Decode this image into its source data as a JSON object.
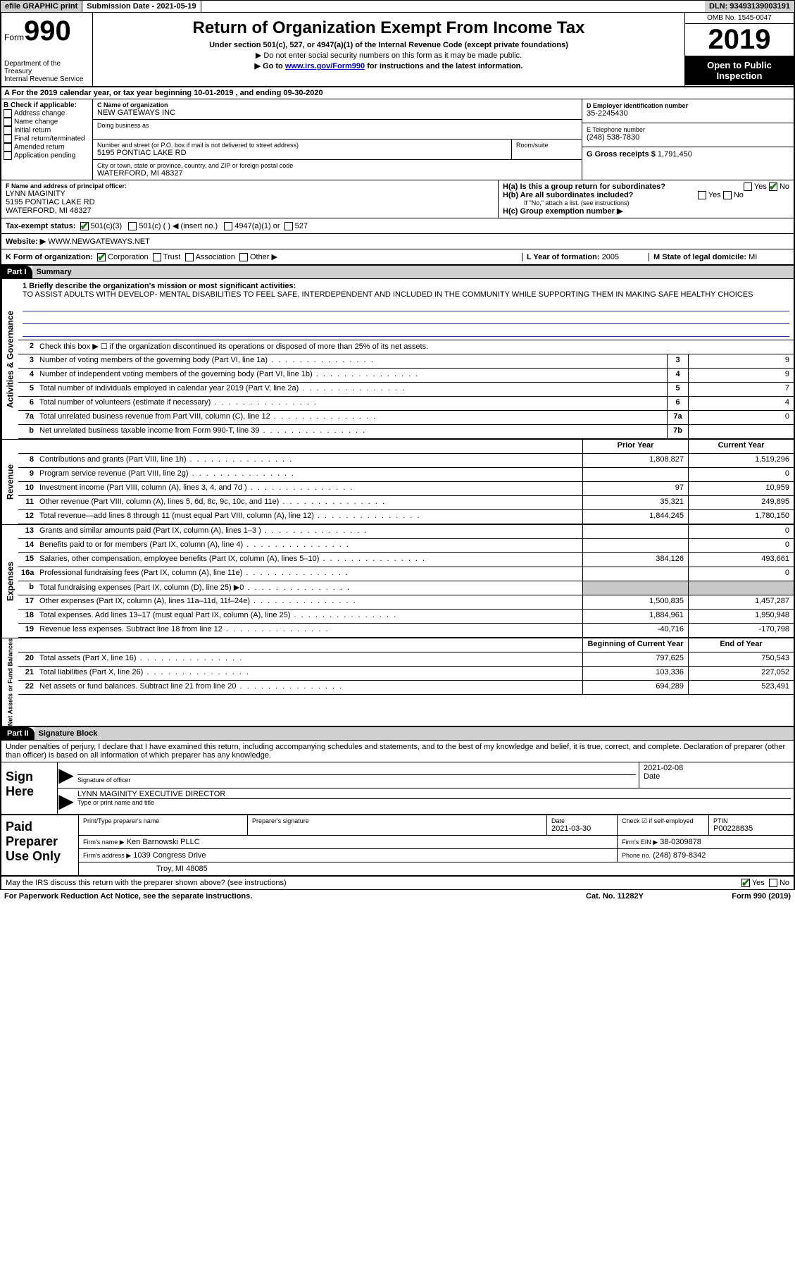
{
  "topbar": {
    "efile": "efile GRAPHIC print",
    "submission": "Submission Date - 2021-05-19",
    "dln": "DLN: 93493139003191"
  },
  "header": {
    "form_word": "Form",
    "form_num": "990",
    "dept": "Department of the Treasury\nInternal Revenue Service",
    "title": "Return of Organization Exempt From Income Tax",
    "sub1": "Under section 501(c), 527, or 4947(a)(1) of the Internal Revenue Code (except private foundations)",
    "sub2": "▶ Do not enter social security numbers on this form as it may be made public.",
    "sub3a": "▶ Go to ",
    "sub3_link": "www.irs.gov/Form990",
    "sub3b": " for instructions and the latest information.",
    "omb": "OMB No. 1545-0047",
    "year": "2019",
    "open": "Open to Public Inspection"
  },
  "period": "A   For the 2019 calendar year, or tax year beginning 10-01-2019   , and ending 09-30-2020",
  "B": {
    "label": "B Check if applicable:",
    "opts": [
      "Address change",
      "Name change",
      "Initial return",
      "Final return/terminated",
      "Amended return",
      "Application pending"
    ]
  },
  "C": {
    "name_lbl": "C Name of organization",
    "name": "NEW GATEWAYS INC",
    "dba_lbl": "Doing business as",
    "dba": "",
    "addr_lbl": "Number and street (or P.O. box if mail is not delivered to street address)",
    "addr": "5195 PONTIAC LAKE RD",
    "room_lbl": "Room/suite",
    "room": "",
    "city_lbl": "City or town, state or province, country, and ZIP or foreign postal code",
    "city": "WATERFORD, MI  48327"
  },
  "D": {
    "lbl": "D Employer identification number",
    "val": "35-2245430"
  },
  "E": {
    "lbl": "E Telephone number",
    "val": "(248) 538-7830"
  },
  "G": {
    "lbl": "G Gross receipts $",
    "val": "1,791,450"
  },
  "F": {
    "lbl": "F  Name and address of principal officer:",
    "name": "LYNN MAGINITY",
    "addr1": "5195 PONTIAC LAKE RD",
    "addr2": "WATERFORD, MI  48327"
  },
  "H": {
    "a": "H(a)  Is this a group return for subordinates?",
    "b": "H(b)  Are all subordinates included?",
    "bnote": "If \"No,\" attach a list. (see instructions)",
    "c": "H(c)  Group exemption number ▶",
    "yes": "Yes",
    "no": "No"
  },
  "I": {
    "lbl": "Tax-exempt status:",
    "o1": "501(c)(3)",
    "o2": "501(c) (   ) ◀ (insert no.)",
    "o3": "4947(a)(1) or",
    "o4": "527"
  },
  "J": {
    "lbl": "Website: ▶",
    "val": "WWW.NEWGATEWAYS.NET"
  },
  "K": {
    "lbl": "K Form of organization:",
    "o1": "Corporation",
    "o2": "Trust",
    "o3": "Association",
    "o4": "Other ▶"
  },
  "L": {
    "lbl": "L Year of formation:",
    "val": "2005"
  },
  "M": {
    "lbl": "M State of legal domicile:",
    "val": "MI"
  },
  "part1": {
    "tag": "Part I",
    "title": "Summary"
  },
  "mission": {
    "lbl": "1  Briefly describe the organization's mission or most significant activities:",
    "text": "TO ASSIST ADULTS WITH DEVELOP- MENTAL DISABILITIES TO FEEL SAFE, INTERDEPENDENT AND INCLUDED IN THE COMMUNITY WHILE SUPPORTING THEM IN MAKING SAFE HEALTHY CHOICES"
  },
  "line2": "Check this box ▶ ☐  if the organization discontinued its operations or disposed of more than 25% of its net assets.",
  "gov": {
    "tab": "Activities & Governance",
    "rows": [
      {
        "n": "3",
        "d": "Number of voting members of the governing body (Part VI, line 1a)",
        "box": "3",
        "v": "9"
      },
      {
        "n": "4",
        "d": "Number of independent voting members of the governing body (Part VI, line 1b)",
        "box": "4",
        "v": "9"
      },
      {
        "n": "5",
        "d": "Total number of individuals employed in calendar year 2019 (Part V, line 2a)",
        "box": "5",
        "v": "7"
      },
      {
        "n": "6",
        "d": "Total number of volunteers (estimate if necessary)",
        "box": "6",
        "v": "4"
      },
      {
        "n": "7a",
        "d": "Total unrelated business revenue from Part VIII, column (C), line 12",
        "box": "7a",
        "v": "0"
      },
      {
        "n": "b",
        "d": "Net unrelated business taxable income from Form 990-T, line 39",
        "box": "7b",
        "v": ""
      }
    ]
  },
  "py_cy": {
    "py": "Prior Year",
    "cy": "Current Year"
  },
  "rev": {
    "tab": "Revenue",
    "rows": [
      {
        "n": "8",
        "d": "Contributions and grants (Part VIII, line 1h)",
        "py": "1,808,827",
        "cy": "1,519,296"
      },
      {
        "n": "9",
        "d": "Program service revenue (Part VIII, line 2g)",
        "py": "",
        "cy": "0"
      },
      {
        "n": "10",
        "d": "Investment income (Part VIII, column (A), lines 3, 4, and 7d )",
        "py": "97",
        "cy": "10,959"
      },
      {
        "n": "11",
        "d": "Other revenue (Part VIII, column (A), lines 5, 6d, 8c, 9c, 10c, and 11e)",
        "py": "35,321",
        "cy": "249,895"
      },
      {
        "n": "12",
        "d": "Total revenue—add lines 8 through 11 (must equal Part VIII, column (A), line 12)",
        "py": "1,844,245",
        "cy": "1,780,150"
      }
    ]
  },
  "exp": {
    "tab": "Expenses",
    "rows": [
      {
        "n": "13",
        "d": "Grants and similar amounts paid (Part IX, column (A), lines 1–3 )",
        "py": "",
        "cy": "0"
      },
      {
        "n": "14",
        "d": "Benefits paid to or for members (Part IX, column (A), line 4)",
        "py": "",
        "cy": "0"
      },
      {
        "n": "15",
        "d": "Salaries, other compensation, employee benefits (Part IX, column (A), lines 5–10)",
        "py": "384,126",
        "cy": "493,661"
      },
      {
        "n": "16a",
        "d": "Professional fundraising fees (Part IX, column (A), line 11e)",
        "py": "",
        "cy": "0"
      },
      {
        "n": "b",
        "d": "Total fundraising expenses (Part IX, column (D), line 25) ▶0",
        "py": "grey",
        "cy": "grey"
      },
      {
        "n": "17",
        "d": "Other expenses (Part IX, column (A), lines 11a–11d, 11f–24e)",
        "py": "1,500,835",
        "cy": "1,457,287"
      },
      {
        "n": "18",
        "d": "Total expenses. Add lines 13–17 (must equal Part IX, column (A), line 25)",
        "py": "1,884,961",
        "cy": "1,950,948"
      },
      {
        "n": "19",
        "d": "Revenue less expenses. Subtract line 18 from line 12",
        "py": "-40,716",
        "cy": "-170,798"
      }
    ]
  },
  "bcy_ecy": {
    "b": "Beginning of Current Year",
    "e": "End of Year"
  },
  "net": {
    "tab": "Net Assets or Fund Balances",
    "rows": [
      {
        "n": "20",
        "d": "Total assets (Part X, line 16)",
        "py": "797,625",
        "cy": "750,543"
      },
      {
        "n": "21",
        "d": "Total liabilities (Part X, line 26)",
        "py": "103,336",
        "cy": "227,052"
      },
      {
        "n": "22",
        "d": "Net assets or fund balances. Subtract line 21 from line 20",
        "py": "694,289",
        "cy": "523,491"
      }
    ]
  },
  "part2": {
    "tag": "Part II",
    "title": "Signature Block"
  },
  "penalty": "Under penalties of perjury, I declare that I have examined this return, including accompanying schedules and statements, and to the best of my knowledge and belief, it is true, correct, and complete. Declaration of preparer (other than officer) is based on all information of which preparer has any knowledge.",
  "sign": {
    "here": "Sign Here",
    "sig_lbl": "Signature of officer",
    "date_lbl": "Date",
    "date": "2021-02-08",
    "name": "LYNN MAGINITY  EXECUTIVE DIRECTOR",
    "name_lbl": "Type or print name and title"
  },
  "prep": {
    "here": "Paid Preparer Use Only",
    "r1": {
      "c1": "Print/Type preparer's name",
      "c2": "Preparer's signature",
      "c3": "Date",
      "c3v": "2021-03-30",
      "c4": "Check ☑ if self-employed",
      "c5": "PTIN",
      "c5v": "P00228835"
    },
    "r2": {
      "c1": "Firm's name    ▶",
      "c1v": "Ken Barnowski PLLC",
      "c2": "Firm's EIN ▶",
      "c2v": "38-0309878"
    },
    "r3": {
      "c1": "Firm's address ▶",
      "c1v": "1039 Congress Drive",
      "c2": "Phone no.",
      "c2v": "(248) 879-8342"
    },
    "r4": {
      "c1": "",
      "c1v": "Troy, MI  48085"
    }
  },
  "discuss": "May the IRS discuss this return with the preparer shown above? (see instructions)",
  "discuss_yes": "Yes",
  "discuss_no": "No",
  "footer": {
    "l": "For Paperwork Reduction Act Notice, see the separate instructions.",
    "m": "Cat. No. 11282Y",
    "r": "Form 990 (2019)"
  }
}
